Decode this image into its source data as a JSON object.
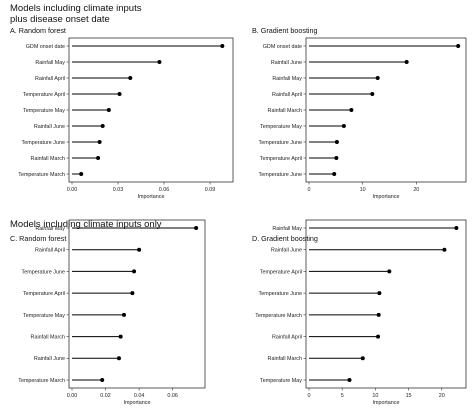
{
  "headings": {
    "top_line1": "Models including climate inputs",
    "top_line2": "plus disease onset date",
    "bottom": "Models including climate inputs only"
  },
  "chart_data": [
    {
      "type": "lollipop",
      "title": "A. Random forest",
      "xlabel": "Importance",
      "xlim": [
        0,
        0.103
      ],
      "xticks": [
        0.0,
        0.03,
        0.06,
        0.09
      ],
      "xtick_labels": [
        "0.00",
        "0.03",
        "0.06",
        "0.09"
      ],
      "categories": [
        "GDM onset date",
        "Rainfall May",
        "Rainfall April",
        "Temperature April",
        "Temperature May",
        "Rainfall June",
        "Temperature June",
        "Rainfall March",
        "Temperature March"
      ],
      "values": [
        0.098,
        0.057,
        0.038,
        0.031,
        0.024,
        0.02,
        0.018,
        0.017,
        0.006
      ]
    },
    {
      "type": "lollipop",
      "title": "B. Gradient boosting",
      "xlabel": "Importance",
      "xlim": [
        0,
        28.7
      ],
      "xticks": [
        0,
        10,
        20
      ],
      "xtick_labels": [
        "0",
        "10",
        "20"
      ],
      "categories": [
        "GDM onset date",
        "Rainfall June",
        "Rainfall May",
        "Rainfall April",
        "Rainfall March",
        "Temperature May",
        "Temperature June",
        "Temperature April",
        "Temperature June"
      ],
      "values": [
        27.8,
        18.2,
        12.8,
        11.8,
        7.9,
        6.5,
        5.2,
        5.1,
        4.7
      ]
    },
    {
      "type": "lollipop",
      "title": "C. Random forest",
      "xlabel": "Importance",
      "xlim": [
        0,
        0.0775
      ],
      "xticks": [
        0.0,
        0.02,
        0.04,
        0.06
      ],
      "xtick_labels": [
        "0.00",
        "0.02",
        "0.04",
        "0.06"
      ],
      "categories": [
        "Rainfall May",
        "Rainfall April",
        "Temperature June",
        "Temperature April",
        "Temperature May",
        "Rainfall March",
        "Rainfall June",
        "Temperature March"
      ],
      "values": [
        0.074,
        0.04,
        0.037,
        0.036,
        0.031,
        0.029,
        0.028,
        0.018
      ]
    },
    {
      "type": "lollipop",
      "title": "D. Gradient boosting",
      "xlabel": "Importance",
      "xlim": [
        0,
        23.2
      ],
      "xticks": [
        0,
        5,
        10,
        15,
        20
      ],
      "xtick_labels": [
        "0",
        "5",
        "10",
        "15",
        "20"
      ],
      "categories": [
        "Rainfall May",
        "Rainfall June",
        "Temperature April",
        "Temperature June",
        "Temperature March",
        "Rainfall April",
        "Rainfall March",
        "Temperature May"
      ],
      "values": [
        22.2,
        20.4,
        12.1,
        10.6,
        10.5,
        10.4,
        8.1,
        6.1
      ]
    }
  ]
}
